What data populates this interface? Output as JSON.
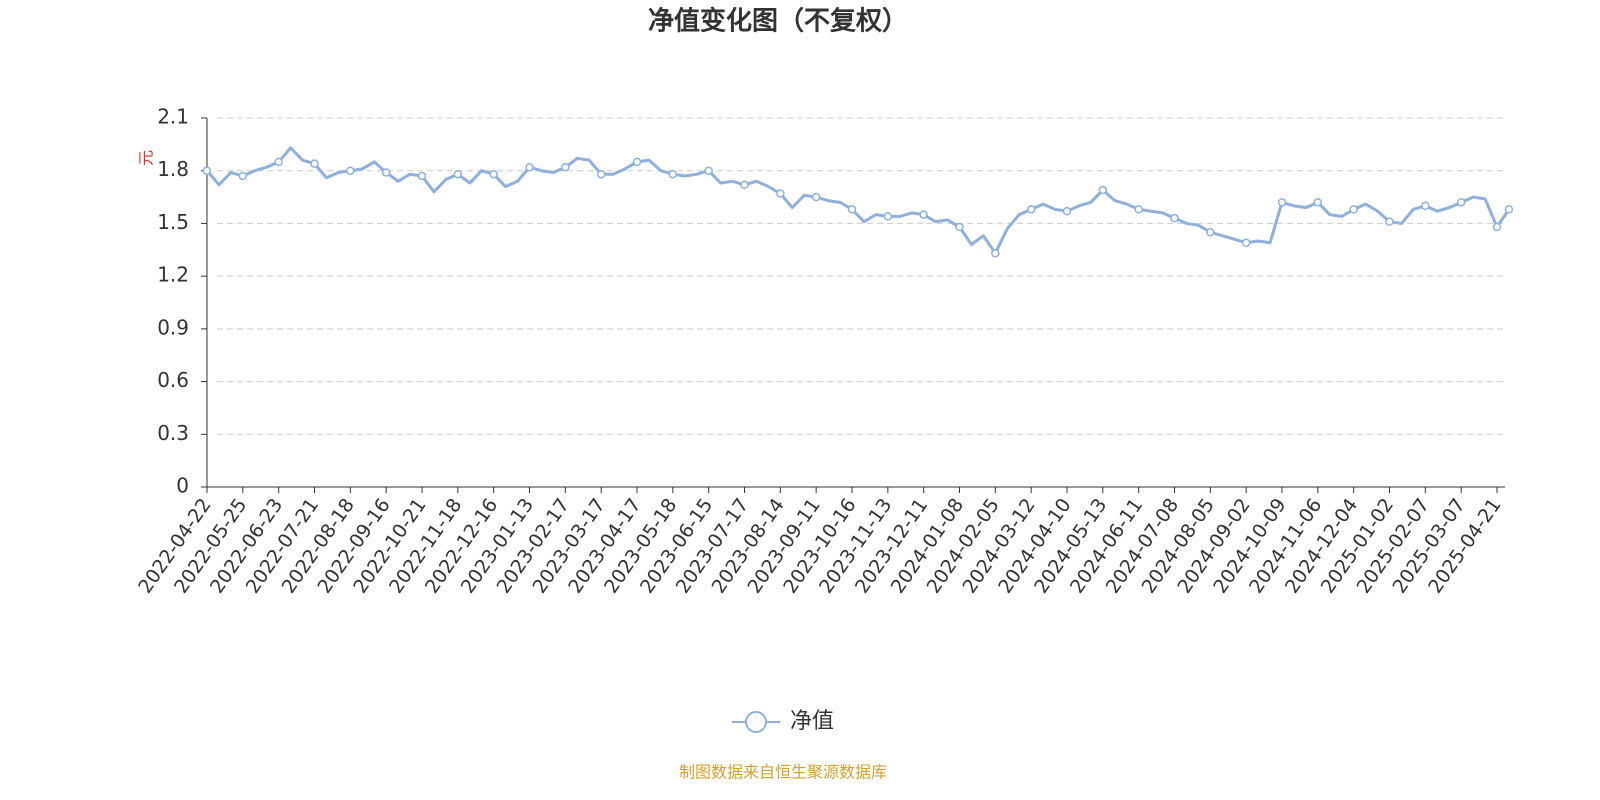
{
  "chart_data": {
    "type": "line",
    "title": "净值变化图（不复权）",
    "y_label": "元",
    "source": "制图数据来自恒生聚源数据库",
    "categories": [
      "2022-04-22",
      null,
      null,
      "2022-05-25",
      null,
      null,
      "2022-06-23",
      null,
      null,
      "2022-07-21",
      null,
      null,
      "2022-08-18",
      null,
      null,
      "2022-09-16",
      null,
      null,
      "2022-10-21",
      null,
      null,
      "2022-11-18",
      null,
      null,
      "2022-12-16",
      null,
      null,
      "2023-01-13",
      null,
      null,
      "2023-02-17",
      null,
      null,
      "2023-03-17",
      null,
      null,
      "2023-04-17",
      null,
      null,
      "2023-05-18",
      null,
      null,
      "2023-06-15",
      null,
      null,
      "2023-07-17",
      null,
      null,
      "2023-08-14",
      null,
      null,
      "2023-09-11",
      null,
      null,
      "2023-10-16",
      null,
      null,
      "2023-11-13",
      null,
      null,
      "2023-12-11",
      null,
      null,
      "2024-01-08",
      null,
      null,
      "2024-02-05",
      null,
      null,
      "2024-03-12",
      null,
      null,
      "2024-04-10",
      null,
      null,
      "2024-05-13",
      null,
      null,
      "2024-06-11",
      null,
      null,
      "2024-07-08",
      null,
      null,
      "2024-08-05",
      null,
      null,
      "2024-09-02",
      null,
      null,
      "2024-10-09",
      null,
      null,
      "2024-11-06",
      null,
      null,
      "2024-12-04",
      null,
      null,
      "2025-01-02",
      null,
      null,
      "2025-02-07",
      null,
      null,
      "2025-03-07",
      null,
      null,
      "2025-04-21",
      null
    ],
    "series": [
      {
        "name": "净值",
        "color": "#8fb0dc",
        "values": [
          1.8,
          1.72,
          1.79,
          1.77,
          1.8,
          1.82,
          1.85,
          1.93,
          1.86,
          1.84,
          1.76,
          1.79,
          1.8,
          1.81,
          1.85,
          1.79,
          1.74,
          1.78,
          1.77,
          1.68,
          1.75,
          1.78,
          1.73,
          1.8,
          1.78,
          1.71,
          1.74,
          1.82,
          1.8,
          1.79,
          1.82,
          1.87,
          1.86,
          1.78,
          1.78,
          1.81,
          1.85,
          1.86,
          1.8,
          1.78,
          1.77,
          1.78,
          1.8,
          1.73,
          1.74,
          1.72,
          1.74,
          1.71,
          1.67,
          1.59,
          1.66,
          1.65,
          1.63,
          1.62,
          1.58,
          1.51,
          1.55,
          1.54,
          1.54,
          1.56,
          1.55,
          1.51,
          1.52,
          1.48,
          1.38,
          1.43,
          1.33,
          1.47,
          1.55,
          1.58,
          1.61,
          1.58,
          1.57,
          1.6,
          1.62,
          1.69,
          1.63,
          1.61,
          1.58,
          1.57,
          1.56,
          1.53,
          1.5,
          1.49,
          1.45,
          1.43,
          1.41,
          1.39,
          1.4,
          1.39,
          1.62,
          1.6,
          1.59,
          1.62,
          1.55,
          1.54,
          1.58,
          1.61,
          1.57,
          1.51,
          1.5,
          1.58,
          1.6,
          1.57,
          1.59,
          1.62,
          1.65,
          1.64,
          1.48,
          1.58
        ]
      }
    ],
    "ylim": [
      0,
      2.1
    ],
    "yticks": [
      0,
      0.3,
      0.6,
      0.9,
      1.2,
      1.5,
      1.8,
      2.1
    ],
    "grid": true,
    "legend": "bottom"
  }
}
